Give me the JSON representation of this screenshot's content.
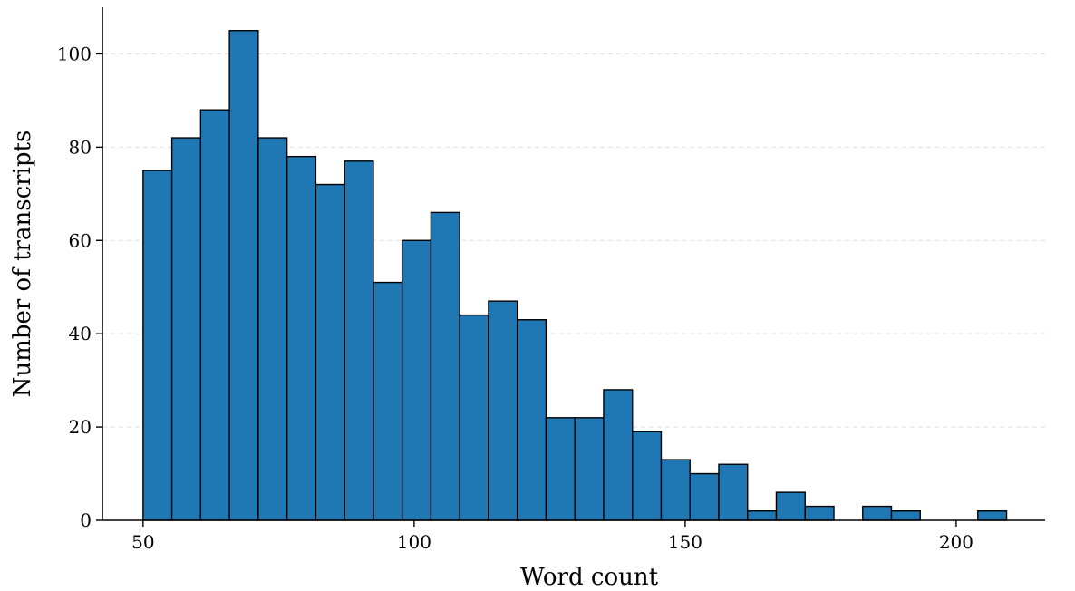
{
  "chart_data": {
    "type": "histogram",
    "title": "",
    "xlabel": "Word count",
    "ylabel": "Number of transcripts",
    "bin_start": 50,
    "bin_width": 5.31,
    "counts": [
      75,
      82,
      88,
      105,
      82,
      78,
      72,
      77,
      51,
      60,
      66,
      44,
      47,
      43,
      22,
      22,
      28,
      19,
      13,
      10,
      12,
      2,
      6,
      3,
      0,
      3,
      2,
      0,
      0,
      2
    ],
    "xlim": [
      42.5,
      216.4
    ],
    "ylim": [
      0,
      110
    ],
    "x_ticks": [
      50,
      100,
      150,
      200
    ],
    "y_ticks": [
      0,
      20,
      40,
      60,
      80,
      100
    ],
    "grid": "y-dashed",
    "legend": "none",
    "colors": {
      "bar_fill": "#1f77b4",
      "bar_edge": "#000000",
      "grid": "#e0e0e0",
      "axis": "#000000"
    }
  }
}
